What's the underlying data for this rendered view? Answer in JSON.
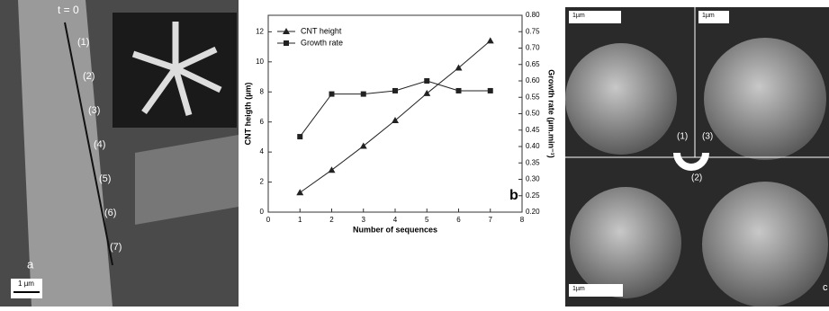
{
  "chart_data": {
    "type": "line",
    "x_label": "Number of sequences",
    "y_label": "CNT heigth (µm)",
    "y2_label": "Growth rate (µm.min⁻¹)",
    "panel_label": "b",
    "x": [
      1,
      2,
      3,
      4,
      5,
      6,
      7
    ],
    "series": [
      {
        "name": "CNT height",
        "color": "#222222",
        "marker": "triangle",
        "values": [
          1.3,
          2.8,
          4.4,
          6.1,
          7.9,
          9.6,
          11.4
        ]
      },
      {
        "name": "Growth rate",
        "color": "#222222",
        "marker": "square",
        "axis": "y2",
        "values": [
          0.43,
          0.56,
          0.56,
          0.57,
          0.6,
          0.57,
          0.57
        ]
      }
    ],
    "xlim": [
      0,
      8
    ],
    "xticks": [
      0,
      1,
      2,
      3,
      4,
      5,
      6,
      7,
      8
    ],
    "ylim": [
      0,
      13.1
    ],
    "yticks": [
      0,
      2,
      4,
      6,
      8,
      10,
      12
    ],
    "y2lim": [
      0.2,
      0.8
    ],
    "y2ticks": [
      {
        "value": 0.2,
        "label": "0.20"
      },
      0.25,
      {
        "value": 0.3,
        "label": "0.30"
      },
      0.35,
      {
        "value": 0.4,
        "label": "0.40"
      },
      0.45,
      {
        "value": 0.5,
        "label": "0.50"
      },
      0.55,
      {
        "value": 0.6,
        "label": "0.60"
      },
      0.65,
      {
        "value": 0.7,
        "label": "0.70"
      },
      0.75,
      {
        "value": 0.8,
        "label": "0.80"
      }
    ],
    "legend": "upper left"
  },
  "panel_a": {
    "start": "t = 0",
    "steps": [
      "(1)",
      "(2)",
      "(3)",
      "(4)",
      "(5)",
      "(6)",
      "(7)"
    ],
    "letter": "a",
    "scale": "1 µm"
  },
  "panel_c": {
    "scales": [
      "1µm",
      "1µm",
      "1µm"
    ],
    "steps": [
      "(1)",
      "(2)",
      "(3)"
    ],
    "letter": "c"
  }
}
